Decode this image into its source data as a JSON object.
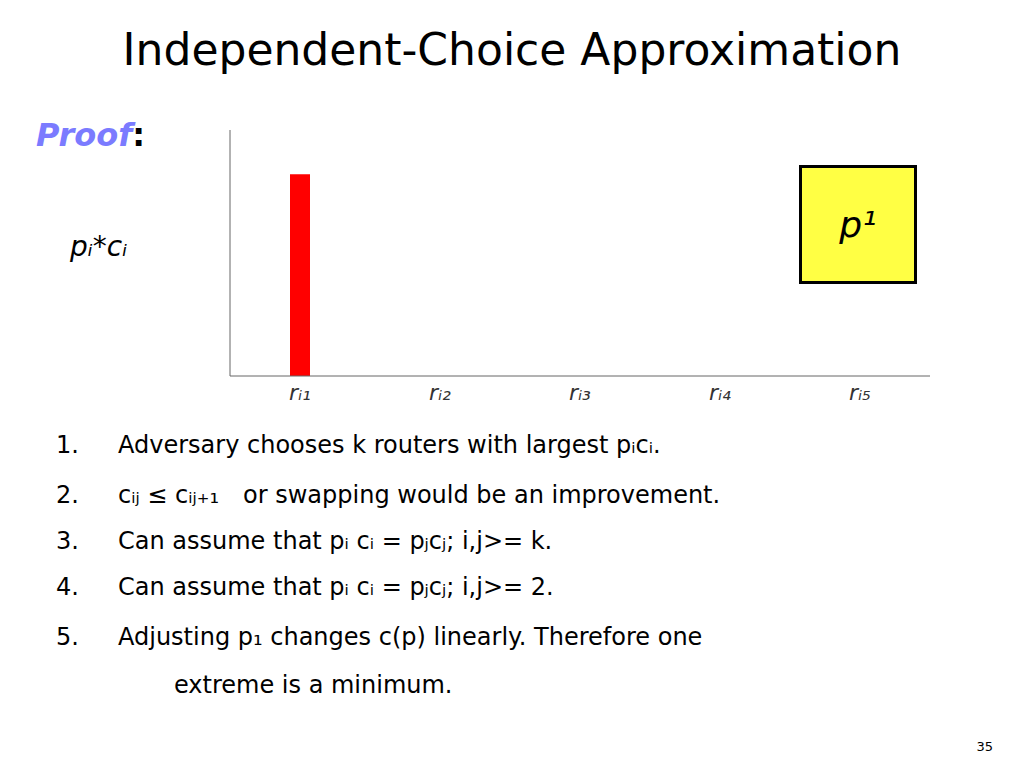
{
  "chart_data": {
    "type": "bar",
    "title": "Independent-Choice Approximation",
    "y_label": "pᵢ*cᵢ",
    "categories": [
      "rᵢ₁",
      "rᵢ₂",
      "rᵢ₃",
      "rᵢ₄",
      "rᵢ₅"
    ],
    "values": [
      0.82,
      null,
      null,
      null,
      null
    ],
    "color": "#FF0000",
    "ylim": [
      0,
      1
    ],
    "yticks": [],
    "grid": false,
    "tick_labels": "x",
    "annotations": [
      {
        "text": "Proof",
        "color": "#7B7BFF"
      },
      {
        "text": ":"
      },
      {
        "text": "p¹",
        "color": "#FFFF44"
      },
      {
        "text": "1."
      },
      {
        "text": "Adversary chooses k routers with largest pᵢcᵢ."
      },
      {
        "text": "2."
      },
      {
        "text": "cᵢⱼ ≤ cᵢⱼ₊₁"
      },
      {
        "text": "or swapping would be an improvement."
      },
      {
        "text": "3."
      },
      {
        "text": "Can assume that pᵢ cᵢ = pⱼcⱼ; i,j>= k."
      },
      {
        "text": "4."
      },
      {
        "text": "Can assume that pᵢ cᵢ = pⱼcⱼ; i,j>= 2."
      },
      {
        "text": "5."
      },
      {
        "text": "Adjusting p₁ changes c(p) linearly.  Therefore one"
      },
      {
        "text": "extreme is a minimum."
      },
      {
        "text": "35"
      }
    ]
  }
}
